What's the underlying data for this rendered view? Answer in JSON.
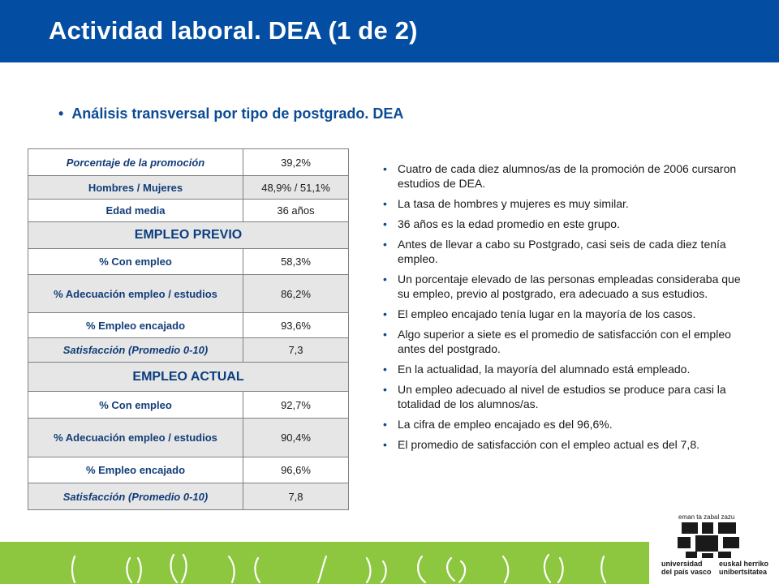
{
  "header": {
    "title": "Actividad laboral. DEA (1 de 2)"
  },
  "subtitle": {
    "bullet": "•",
    "text": "Análisis transversal por tipo de postgrado. DEA"
  },
  "table": {
    "general": [
      {
        "label": "Porcentaje de la promoción",
        "value": "39,2%"
      },
      {
        "label": "Hombres / Mujeres",
        "value": "48,9% / 51,1%"
      },
      {
        "label": "Edad media",
        "value": "36 años"
      }
    ],
    "previo": {
      "heading": "EMPLEO PREVIO",
      "rows": [
        {
          "label": "% Con empleo",
          "value": "58,3%"
        },
        {
          "label": "% Adecuación empleo / estudios",
          "value": "86,2%"
        },
        {
          "label": "% Empleo encajado",
          "value": "93,6%"
        },
        {
          "label": "Satisfacción (Promedio 0-10)",
          "value": "7,3"
        }
      ]
    },
    "actual": {
      "heading": "EMPLEO ACTUAL",
      "rows": [
        {
          "label": "% Con empleo",
          "value": "92,7%"
        },
        {
          "label": "% Adecuación empleo / estudios",
          "value": "90,4%"
        },
        {
          "label": "% Empleo encajado",
          "value": "96,6%"
        },
        {
          "label": "Satisfacción (Promedio 0-10)",
          "value": "7,8"
        }
      ]
    }
  },
  "bullets": [
    "Cuatro de cada diez alumnos/as de la promoción de 2006 cursaron estudios de DEA.",
    "La tasa de hombres y mujeres es muy similar.",
    "36 años es la edad promedio en este grupo.",
    "Antes de llevar a cabo su Postgrado, casi seis de cada diez tenía empleo.",
    "Un porcentaje elevado de las personas empleadas consideraba que su empleo, previo al postgrado, era adecuado a sus estudios.",
    "El empleo encajado tenía lugar en la mayoría de los casos.",
    "Algo superior a siete es el promedio de satisfacción con el empleo antes del postgrado.",
    "En la actualidad, la mayoría del alumnado está empleado.",
    "Un empleo adecuado al nivel de estudios se produce para casi la totalidad de los alumnos/as.",
    "La cifra de empleo encajado es del 96,6%.",
    "El promedio de satisfacción con el empleo actual es del 7,8."
  ],
  "logo": {
    "tagline": "eman ta zabal zazu",
    "left_line1": "universidad",
    "left_line2": "del país vasco",
    "right_line1": "euskal herriko",
    "right_line2": "unibertsitatea"
  },
  "colors": {
    "header": "#034ea2",
    "footer": "#8dc63f",
    "accent": "#0a4b94",
    "table_shade": "#e6e6e6"
  }
}
